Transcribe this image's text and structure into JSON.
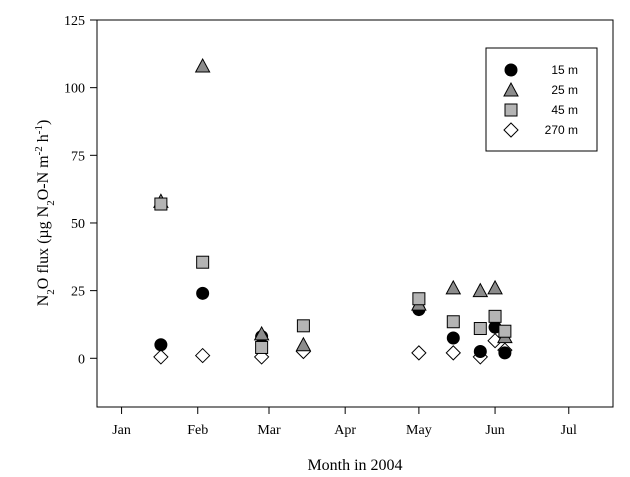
{
  "chart_data": {
    "type": "scatter",
    "xlabel": "Month  in 2004",
    "ylabel_parts": [
      "N",
      "2",
      "O flux (µg N",
      "2",
      "O-N m",
      "-2",
      " h",
      "-1",
      ")"
    ],
    "x_ticks": [
      "Jan",
      "Feb",
      "Mar",
      "Apr",
      "May",
      "Jun",
      "Jul"
    ],
    "x_domain": [
      "2003-12-22",
      "2004-07-19"
    ],
    "y_ticks": [
      0,
      25,
      50,
      75,
      100,
      125
    ],
    "ylim": [
      -18,
      125
    ],
    "legend_position": "top-right",
    "series": [
      {
        "name": "15 m",
        "marker": "circle",
        "fill": "#000000",
        "points": [
          {
            "x": "2004-01-17",
            "y": 5
          },
          {
            "x": "2004-02-03",
            "y": 24
          },
          {
            "x": "2004-02-27",
            "y": 8
          },
          {
            "x": "2004-05-01",
            "y": 18
          },
          {
            "x": "2004-05-15",
            "y": 7.5
          },
          {
            "x": "2004-05-26",
            "y": 2.5
          },
          {
            "x": "2004-06-01",
            "y": 11.5
          },
          {
            "x": "2004-06-05",
            "y": 2
          }
        ]
      },
      {
        "name": "25 m",
        "marker": "triangle",
        "fill": "#8c8c8c",
        "points": [
          {
            "x": "2004-01-17",
            "y": 58
          },
          {
            "x": "2004-02-03",
            "y": 108
          },
          {
            "x": "2004-02-27",
            "y": 9
          },
          {
            "x": "2004-03-15",
            "y": 5
          },
          {
            "x": "2004-05-01",
            "y": 20
          },
          {
            "x": "2004-05-15",
            "y": 26
          },
          {
            "x": "2004-05-26",
            "y": 25
          },
          {
            "x": "2004-06-01",
            "y": 26
          },
          {
            "x": "2004-06-05",
            "y": 8
          }
        ]
      },
      {
        "name": "45 m",
        "marker": "square",
        "fill": "#b4b4b4",
        "points": [
          {
            "x": "2004-01-17",
            "y": 57
          },
          {
            "x": "2004-02-03",
            "y": 35.5
          },
          {
            "x": "2004-02-27",
            "y": 4
          },
          {
            "x": "2004-03-15",
            "y": 12
          },
          {
            "x": "2004-05-01",
            "y": 22
          },
          {
            "x": "2004-05-15",
            "y": 13.5
          },
          {
            "x": "2004-05-26",
            "y": 11
          },
          {
            "x": "2004-06-01",
            "y": 15.5
          },
          {
            "x": "2004-06-05",
            "y": 10
          }
        ]
      },
      {
        "name": "270 m",
        "marker": "diamond",
        "fill": "#ffffff",
        "points": [
          {
            "x": "2004-01-17",
            "y": 0.5
          },
          {
            "x": "2004-02-03",
            "y": 1
          },
          {
            "x": "2004-02-27",
            "y": 0.5
          },
          {
            "x": "2004-03-15",
            "y": 2.5
          },
          {
            "x": "2004-05-01",
            "y": 2
          },
          {
            "x": "2004-05-15",
            "y": 2
          },
          {
            "x": "2004-05-26",
            "y": 0.5
          },
          {
            "x": "2004-06-01",
            "y": 6.5
          },
          {
            "x": "2004-06-05",
            "y": 3
          }
        ]
      }
    ]
  }
}
